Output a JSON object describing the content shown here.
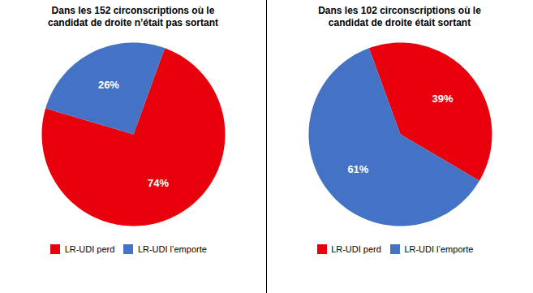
{
  "chart_data": [
    {
      "type": "pie",
      "title": "Dans les 152 circonscriptions où le\ncandidat de droite n’était pas sortant",
      "categories": [
        "LR-UDI perd",
        "LR-UDI l’emporte"
      ],
      "values": [
        74,
        26
      ],
      "value_labels": [
        "74%",
        "26%"
      ],
      "colors": [
        "#e8000d",
        "#4472c4"
      ],
      "data_labels": true,
      "legend": "bottom"
    },
    {
      "type": "pie",
      "title": "Dans les 102 circonscriptions où le\ncandidat de droite était sortant",
      "categories": [
        "LR-UDI perd",
        "LR-UDI l’emporte"
      ],
      "values": [
        39,
        61
      ],
      "value_labels": [
        "39%",
        "61%"
      ],
      "colors": [
        "#e8000d",
        "#4472c4"
      ],
      "data_labels": true,
      "legend": "bottom"
    }
  ]
}
